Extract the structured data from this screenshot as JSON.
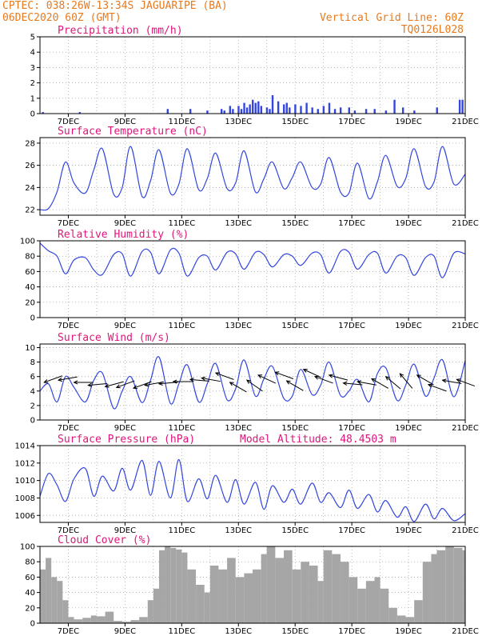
{
  "header": {
    "line1": "CPTEC:  038:26W-13:34S  JAGUARIPE (BA)",
    "line2": "06DEC2020 60Z (GMT)",
    "grid_note": "Vertical Grid Line: 60Z",
    "model_id": "TQ0126L028"
  },
  "colors": {
    "header": "#e87a1e",
    "title": "#e0157a",
    "line": "#3346e0",
    "cloud": "#a6a6a6",
    "wind_arrow": "#000000"
  },
  "x_axis": {
    "range_days": [
      6.0,
      21.0
    ],
    "tick_days": [
      7,
      9,
      11,
      13,
      15,
      17,
      19,
      21
    ],
    "tick_labels": [
      "7DEC",
      "9DEC",
      "11DEC",
      "13DEC",
      "15DEC",
      "17DEC",
      "19DEC",
      "21DEC"
    ],
    "grid_every_days": 1
  },
  "chart_data": [
    {
      "type": "bar",
      "title": "Precipitation  (mm/h)",
      "ylim": [
        0,
        5
      ],
      "yticks": [
        0,
        1,
        2,
        3,
        4,
        5
      ],
      "x": [
        6.1,
        7.4,
        10.5,
        11.3,
        11.9,
        12.4,
        12.5,
        12.7,
        12.8,
        13.0,
        13.1,
        13.2,
        13.3,
        13.4,
        13.5,
        13.6,
        13.7,
        13.8,
        14.0,
        14.1,
        14.2,
        14.4,
        14.6,
        14.7,
        14.8,
        15.0,
        15.2,
        15.4,
        15.6,
        15.8,
        16.0,
        16.2,
        16.4,
        16.6,
        16.9,
        17.1,
        17.5,
        17.8,
        18.2,
        18.5,
        18.8,
        19.2,
        20.0,
        20.8,
        20.9
      ],
      "values": [
        0.1,
        0.1,
        0.3,
        0.3,
        0.2,
        0.3,
        0.2,
        0.5,
        0.3,
        0.5,
        0.3,
        0.7,
        0.4,
        0.6,
        0.9,
        0.7,
        0.8,
        0.5,
        0.4,
        0.3,
        1.2,
        0.8,
        0.6,
        0.7,
        0.4,
        0.6,
        0.5,
        0.7,
        0.4,
        0.3,
        0.5,
        0.7,
        0.3,
        0.4,
        0.4,
        0.2,
        0.3,
        0.3,
        0.2,
        0.9,
        0.4,
        0.2,
        0.4,
        0.9,
        0.9
      ]
    },
    {
      "type": "line",
      "title": "Surface Temperature (nC)",
      "ylim": [
        21.5,
        28.5
      ],
      "yticks": [
        22,
        24,
        26,
        28
      ],
      "x": [
        6.0,
        6.3,
        6.6,
        6.9,
        7.2,
        7.6,
        7.9,
        8.2,
        8.6,
        8.9,
        9.2,
        9.6,
        9.9,
        10.2,
        10.6,
        10.9,
        11.2,
        11.6,
        11.9,
        12.2,
        12.6,
        12.9,
        13.2,
        13.6,
        13.9,
        14.2,
        14.6,
        14.9,
        15.2,
        15.6,
        15.9,
        16.2,
        16.6,
        16.9,
        17.2,
        17.6,
        17.9,
        18.2,
        18.6,
        18.9,
        19.2,
        19.6,
        19.9,
        20.2,
        20.6,
        21.0
      ],
      "values": [
        22.0,
        22.1,
        23.6,
        26.3,
        24.4,
        23.5,
        25.6,
        27.5,
        23.4,
        24.0,
        27.7,
        23.2,
        24.6,
        27.4,
        23.5,
        24.3,
        27.5,
        23.8,
        24.8,
        27.1,
        23.9,
        24.4,
        27.3,
        23.6,
        24.8,
        26.3,
        23.9,
        24.9,
        26.3,
        24.0,
        24.3,
        26.7,
        23.6,
        23.5,
        26.2,
        23.0,
        24.5,
        26.9,
        24.1,
        24.8,
        27.5,
        24.1,
        24.5,
        27.7,
        24.3,
        25.2
      ]
    },
    {
      "type": "line",
      "title": "Relative Humidity (%)",
      "ylim": [
        0,
        100
      ],
      "yticks": [
        0,
        20,
        40,
        60,
        80,
        100
      ],
      "x": [
        6.0,
        6.3,
        6.6,
        6.9,
        7.2,
        7.6,
        7.9,
        8.2,
        8.6,
        8.9,
        9.2,
        9.6,
        9.9,
        10.2,
        10.6,
        10.9,
        11.2,
        11.6,
        11.9,
        12.2,
        12.6,
        12.9,
        13.2,
        13.6,
        13.9,
        14.2,
        14.6,
        14.9,
        15.2,
        15.6,
        15.9,
        16.2,
        16.6,
        16.9,
        17.2,
        17.6,
        17.9,
        18.2,
        18.6,
        18.9,
        19.2,
        19.6,
        19.9,
        20.2,
        20.6,
        21.0
      ],
      "values": [
        97,
        87,
        80,
        57,
        75,
        78,
        62,
        56,
        82,
        83,
        54,
        86,
        85,
        57,
        88,
        84,
        54,
        78,
        80,
        62,
        85,
        83,
        63,
        85,
        82,
        66,
        82,
        80,
        68,
        84,
        82,
        58,
        86,
        85,
        63,
        82,
        84,
        58,
        80,
        78,
        55,
        78,
        80,
        52,
        84,
        83
      ]
    },
    {
      "type": "line",
      "title": "Surface Wind (m/s)",
      "ylim": [
        0,
        10.5
      ],
      "yticks": [
        0,
        2,
        4,
        6,
        8,
        10
      ],
      "x": [
        6.0,
        6.3,
        6.6,
        6.9,
        7.2,
        7.6,
        7.9,
        8.2,
        8.6,
        8.9,
        9.2,
        9.6,
        9.9,
        10.2,
        10.6,
        10.9,
        11.2,
        11.6,
        11.9,
        12.2,
        12.6,
        12.9,
        13.2,
        13.6,
        13.9,
        14.2,
        14.6,
        14.9,
        15.2,
        15.6,
        15.9,
        16.2,
        16.6,
        16.9,
        17.2,
        17.6,
        17.9,
        18.2,
        18.6,
        18.9,
        19.2,
        19.6,
        19.9,
        20.2,
        20.6,
        21.0
      ],
      "values": [
        4.0,
        5.0,
        2.5,
        6.0,
        4.5,
        2.5,
        5.5,
        6.5,
        1.6,
        4.0,
        6.0,
        2.4,
        5.5,
        8.7,
        2.3,
        5.0,
        7.6,
        2.5,
        5.0,
        7.8,
        2.8,
        4.3,
        8.3,
        3.3,
        5.7,
        7.4,
        3.0,
        3.3,
        7.0,
        3.5,
        4.8,
        8.0,
        3.4,
        4.0,
        5.6,
        2.5,
        6.4,
        7.2,
        2.7,
        4.8,
        7.7,
        3.3,
        5.8,
        8.3,
        3.2,
        8.2
      ],
      "wind_vectors": {
        "x": [
          6.15,
          6.65,
          7.2,
          7.7,
          8.3,
          8.7,
          9.3,
          9.7,
          10.2,
          10.7,
          11.3,
          11.7,
          12.2,
          12.7,
          13.3,
          13.7,
          14.3,
          14.7,
          15.3,
          15.7,
          16.2,
          16.7,
          17.2,
          17.7,
          18.2,
          18.7,
          19.3,
          19.7,
          20.2,
          20.7
        ],
        "speed": [
          5.2,
          5.5,
          5.2,
          4.8,
          4.6,
          4.5,
          4.4,
          4.8,
          5.0,
          5.3,
          5.6,
          5.8,
          6.5,
          5.2,
          5.5,
          6.2,
          6.6,
          5.4,
          7.0,
          6.0,
          6.2,
          5.1,
          5.3,
          5.7,
          6.0,
          6.4,
          6.2,
          4.9,
          5.5,
          5.6
        ],
        "dir_deg": [
          70,
          80,
          90,
          85,
          75,
          70,
          70,
          80,
          85,
          90,
          95,
          100,
          110,
          120,
          125,
          115,
          110,
          120,
          115,
          110,
          105,
          95,
          100,
          120,
          130,
          140,
          120,
          110,
          100,
          110
        ]
      }
    },
    {
      "type": "line",
      "title": "Surface Pressure (hPa)",
      "subtitle": "Model Altitude: 48.4503 m",
      "ylim": [
        1005.2,
        1014
      ],
      "yticks": [
        1006,
        1008,
        1010,
        1012,
        1014
      ],
      "x": [
        6.0,
        6.3,
        6.6,
        6.9,
        7.2,
        7.6,
        7.9,
        8.2,
        8.6,
        8.9,
        9.2,
        9.6,
        9.9,
        10.2,
        10.6,
        10.9,
        11.2,
        11.6,
        11.9,
        12.2,
        12.6,
        12.9,
        13.2,
        13.6,
        13.9,
        14.2,
        14.6,
        14.9,
        15.2,
        15.6,
        15.9,
        16.2,
        16.6,
        16.9,
        17.2,
        17.6,
        17.9,
        18.2,
        18.6,
        18.9,
        19.2,
        19.6,
        19.9,
        20.2,
        20.6,
        21.0
      ],
      "values": [
        1008.2,
        1010.8,
        1009.5,
        1007.6,
        1010.2,
        1011.4,
        1008.2,
        1010.5,
        1008.8,
        1011.4,
        1008.9,
        1012.3,
        1008.3,
        1012.2,
        1008.0,
        1012.4,
        1007.6,
        1010.2,
        1007.9,
        1010.6,
        1007.5,
        1010.1,
        1007.3,
        1009.8,
        1006.7,
        1009.4,
        1007.5,
        1009.0,
        1007.3,
        1009.7,
        1007.5,
        1008.6,
        1006.9,
        1008.9,
        1006.8,
        1008.4,
        1006.4,
        1007.7,
        1005.8,
        1007.0,
        1005.3,
        1007.3,
        1005.6,
        1006.8,
        1005.4,
        1006.2
      ]
    },
    {
      "type": "area",
      "title": "Cloud Cover (%)",
      "ylim": [
        0,
        100
      ],
      "yticks": [
        0,
        20,
        40,
        60,
        80,
        100
      ],
      "x": [
        6.0,
        6.2,
        6.4,
        6.6,
        6.8,
        7.0,
        7.2,
        7.5,
        7.8,
        8.0,
        8.3,
        8.6,
        8.9,
        9.2,
        9.5,
        9.8,
        10.0,
        10.2,
        10.4,
        10.6,
        10.8,
        11.0,
        11.2,
        11.5,
        11.8,
        12.0,
        12.3,
        12.6,
        12.9,
        13.2,
        13.5,
        13.8,
        14.0,
        14.3,
        14.6,
        14.9,
        15.2,
        15.5,
        15.8,
        16.0,
        16.3,
        16.6,
        16.9,
        17.2,
        17.5,
        17.8,
        18.0,
        18.3,
        18.6,
        18.9,
        19.2,
        19.5,
        19.8,
        20.0,
        20.3,
        20.6,
        20.9
      ],
      "values": [
        70,
        85,
        60,
        55,
        30,
        8,
        5,
        7,
        10,
        9,
        15,
        3,
        2,
        4,
        8,
        30,
        45,
        95,
        100,
        98,
        96,
        92,
        70,
        50,
        40,
        75,
        70,
        85,
        60,
        65,
        70,
        90,
        100,
        85,
        95,
        70,
        80,
        75,
        55,
        95,
        90,
        80,
        60,
        45,
        55,
        60,
        45,
        20,
        10,
        8,
        30,
        80,
        90,
        95,
        100,
        98,
        95
      ]
    }
  ]
}
